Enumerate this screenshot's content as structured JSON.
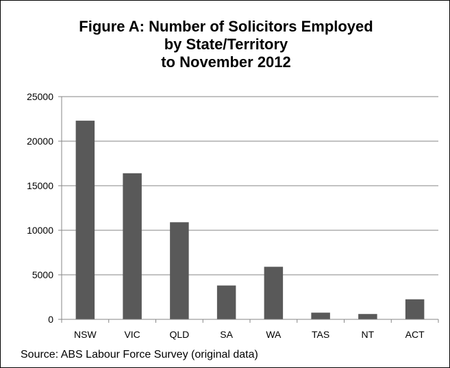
{
  "chart_data": {
    "type": "bar",
    "title_lines": [
      "Figure A: Number of Solicitors Employed",
      "by State/Territory",
      "to November 2012"
    ],
    "categories": [
      "NSW",
      "VIC",
      "QLD",
      "SA",
      "WA",
      "TAS",
      "NT",
      "ACT"
    ],
    "values": [
      22300,
      16400,
      10900,
      3800,
      5900,
      750,
      600,
      2250
    ],
    "yticks": [
      "0",
      "5000",
      "10000",
      "15000",
      "20000",
      "25000"
    ],
    "ylim": [
      0,
      25000
    ],
    "grid": true,
    "bar_color": "#595959",
    "grid_color": "#868686"
  },
  "source": "Source: ABS Labour Force Survey (original data)"
}
